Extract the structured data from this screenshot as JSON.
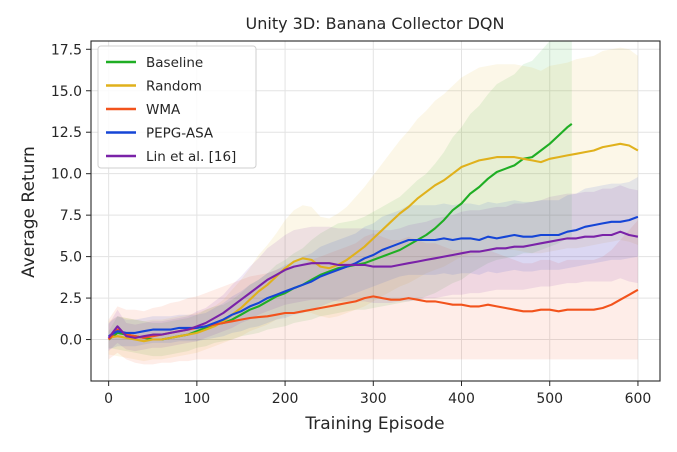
{
  "chart_data": {
    "type": "line",
    "title": "Unity 3D: Banana Collector DQN",
    "xlabel": "Training Episode",
    "ylabel": "Average Return",
    "xlim": [
      -20,
      625
    ],
    "ylim": [
      -2.5,
      18.0
    ],
    "xticks": [
      0,
      100,
      200,
      300,
      400,
      500,
      600
    ],
    "yticks": [
      0.0,
      2.5,
      5.0,
      7.5,
      10.0,
      12.5,
      15.0,
      17.5
    ],
    "xtick_labels": [
      "0",
      "100",
      "200",
      "300",
      "400",
      "500",
      "600"
    ],
    "ytick_labels": [
      "0.0",
      "2.5",
      "5.0",
      "7.5",
      "10.0",
      "12.5",
      "15.0",
      "17.5"
    ],
    "grid": true,
    "legend_position": "upper-left",
    "series": [
      {
        "name": "Baseline",
        "color": "#1fae24",
        "x": [
          0,
          10,
          20,
          30,
          40,
          50,
          60,
          70,
          80,
          90,
          100,
          110,
          120,
          130,
          140,
          150,
          160,
          170,
          180,
          190,
          200,
          210,
          220,
          230,
          240,
          250,
          260,
          270,
          280,
          290,
          300,
          310,
          320,
          330,
          340,
          350,
          360,
          370,
          380,
          390,
          400,
          410,
          420,
          430,
          440,
          450,
          460,
          470,
          480,
          490,
          500,
          510,
          520,
          525
        ],
        "y": [
          0.0,
          0.4,
          0.3,
          0.2,
          0.1,
          0.0,
          0.0,
          0.1,
          0.2,
          0.3,
          0.5,
          0.7,
          0.9,
          1.0,
          1.2,
          1.5,
          1.8,
          2.0,
          2.3,
          2.6,
          2.8,
          3.1,
          3.3,
          3.6,
          3.9,
          4.1,
          4.3,
          4.4,
          4.5,
          4.6,
          4.8,
          5.0,
          5.2,
          5.4,
          5.7,
          6.0,
          6.3,
          6.7,
          7.2,
          7.8,
          8.2,
          8.8,
          9.2,
          9.7,
          10.1,
          10.3,
          10.5,
          10.9,
          11.0,
          11.4,
          11.8,
          12.3,
          12.8,
          13.0
        ],
        "band_lo": [
          -0.5,
          -0.6,
          -0.7,
          -0.8,
          -0.9,
          -1.0,
          -1.0,
          -0.9,
          -0.8,
          -0.7,
          -0.5,
          -0.4,
          -0.2,
          -0.1,
          0.0,
          0.2,
          0.3,
          0.4,
          0.6,
          0.7,
          0.8,
          1.0,
          1.1,
          1.2,
          1.4,
          1.5,
          1.6,
          1.7,
          1.8,
          1.8,
          1.9,
          2.0,
          2.1,
          2.2,
          2.3,
          2.4,
          2.6,
          2.8,
          3.1,
          3.4,
          3.6,
          4.0,
          4.3,
          4.6,
          4.8,
          4.9,
          5.0,
          5.2,
          5.2,
          5.4,
          5.6,
          5.8,
          6.1,
          6.2
        ],
        "band_hi": [
          0.5,
          1.4,
          1.3,
          1.2,
          1.1,
          1.0,
          1.0,
          1.1,
          1.2,
          1.3,
          1.5,
          1.8,
          2.0,
          2.1,
          2.4,
          2.8,
          3.3,
          3.6,
          4.0,
          4.5,
          4.8,
          5.2,
          5.5,
          6.0,
          6.4,
          6.7,
          7.0,
          7.1,
          7.2,
          7.4,
          7.7,
          8.0,
          8.3,
          8.6,
          9.1,
          9.6,
          10.0,
          10.6,
          11.3,
          12.2,
          12.8,
          13.6,
          14.1,
          14.8,
          15.4,
          15.7,
          16.0,
          16.6,
          16.8,
          17.4,
          18.0,
          18.0,
          18.0,
          18.0
        ]
      },
      {
        "name": "Random",
        "color": "#e0b11c",
        "x": [
          0,
          10,
          20,
          30,
          40,
          50,
          60,
          70,
          80,
          90,
          100,
          110,
          120,
          130,
          140,
          150,
          160,
          170,
          180,
          190,
          200,
          210,
          220,
          230,
          240,
          250,
          260,
          270,
          280,
          290,
          300,
          310,
          320,
          330,
          340,
          350,
          360,
          370,
          380,
          390,
          400,
          410,
          420,
          430,
          440,
          450,
          460,
          470,
          480,
          490,
          500,
          510,
          520,
          530,
          540,
          550,
          560,
          570,
          580,
          590,
          600
        ],
        "y": [
          0.1,
          0.2,
          0.1,
          0.0,
          -0.1,
          0.0,
          0.0,
          0.1,
          0.2,
          0.3,
          0.4,
          0.6,
          0.8,
          1.1,
          1.5,
          1.9,
          2.4,
          2.9,
          3.3,
          3.8,
          4.3,
          4.7,
          4.9,
          4.8,
          4.4,
          4.3,
          4.5,
          4.8,
          5.2,
          5.6,
          6.1,
          6.6,
          7.1,
          7.6,
          8.0,
          8.5,
          8.9,
          9.3,
          9.6,
          10.0,
          10.4,
          10.6,
          10.8,
          10.9,
          11.0,
          11.0,
          11.0,
          10.9,
          10.8,
          10.7,
          10.9,
          11.0,
          11.1,
          11.2,
          11.3,
          11.4,
          11.6,
          11.7,
          11.8,
          11.7,
          11.4
        ],
        "band_lo": [
          -0.9,
          -1.0,
          -1.1,
          -1.2,
          -1.3,
          -1.2,
          -1.2,
          -1.1,
          -1.0,
          -0.9,
          -0.8,
          -0.6,
          -0.4,
          -0.2,
          0.0,
          0.2,
          0.5,
          0.7,
          0.9,
          1.2,
          1.4,
          1.6,
          1.7,
          1.6,
          1.4,
          1.3,
          1.4,
          1.6,
          1.8,
          2.0,
          2.3,
          2.6,
          2.9,
          3.2,
          3.4,
          3.7,
          4.0,
          4.2,
          4.4,
          4.7,
          5.0,
          5.1,
          5.2,
          5.3,
          5.4,
          5.4,
          5.4,
          5.3,
          5.2,
          5.2,
          5.3,
          5.4,
          5.5,
          5.5,
          5.6,
          5.7,
          5.8,
          5.9,
          6.0,
          5.9,
          5.7
        ],
        "band_hi": [
          1.1,
          1.4,
          1.3,
          1.2,
          1.1,
          1.2,
          1.2,
          1.3,
          1.4,
          1.5,
          1.6,
          1.8,
          2.0,
          2.4,
          3.0,
          3.6,
          4.3,
          5.1,
          5.7,
          6.4,
          7.2,
          7.8,
          8.1,
          8.0,
          7.4,
          7.3,
          7.6,
          8.0,
          8.6,
          9.2,
          9.9,
          10.6,
          11.3,
          12.0,
          12.6,
          13.3,
          13.8,
          14.4,
          14.8,
          15.3,
          15.8,
          16.1,
          16.4,
          16.5,
          16.6,
          16.6,
          16.6,
          16.5,
          16.4,
          16.2,
          16.5,
          16.6,
          16.7,
          16.9,
          17.0,
          17.1,
          17.4,
          17.5,
          17.6,
          17.5,
          17.1
        ]
      },
      {
        "name": "WMA",
        "color": "#f2531c",
        "x": [
          0,
          10,
          20,
          30,
          40,
          50,
          60,
          70,
          80,
          90,
          100,
          110,
          120,
          130,
          140,
          150,
          160,
          170,
          180,
          190,
          200,
          210,
          220,
          230,
          240,
          250,
          260,
          270,
          280,
          290,
          300,
          310,
          320,
          330,
          340,
          350,
          360,
          370,
          380,
          390,
          400,
          410,
          420,
          430,
          440,
          450,
          460,
          470,
          480,
          490,
          500,
          510,
          520,
          530,
          540,
          550,
          560,
          570,
          580,
          590,
          600
        ],
        "y": [
          0.0,
          0.6,
          0.3,
          0.2,
          0.1,
          0.2,
          0.3,
          0.4,
          0.5,
          0.6,
          0.7,
          0.8,
          0.9,
          1.0,
          1.1,
          1.2,
          1.3,
          1.35,
          1.4,
          1.5,
          1.6,
          1.6,
          1.7,
          1.8,
          1.9,
          2.0,
          2.1,
          2.2,
          2.3,
          2.5,
          2.6,
          2.5,
          2.4,
          2.4,
          2.5,
          2.4,
          2.3,
          2.3,
          2.2,
          2.1,
          2.1,
          2.0,
          2.0,
          2.1,
          2.0,
          1.9,
          1.8,
          1.7,
          1.7,
          1.8,
          1.8,
          1.7,
          1.8,
          1.8,
          1.8,
          1.8,
          1.9,
          2.1,
          2.4,
          2.7,
          3.0
        ],
        "band_lo": [
          -1.2,
          -0.8,
          -1.2,
          -1.4,
          -1.5,
          -1.5,
          -1.4,
          -1.4,
          -1.3,
          -1.3,
          -1.2,
          -1.2,
          -1.2,
          -1.2,
          -1.2,
          -1.2,
          -1.2,
          -1.2,
          -1.2,
          -1.2,
          -1.2,
          -1.2,
          -1.2,
          -1.2,
          -1.2,
          -1.2,
          -1.2,
          -1.2,
          -1.2,
          -1.2,
          -1.2,
          -1.2,
          -1.2,
          -1.2,
          -1.2,
          -1.2,
          -1.2,
          -1.2,
          -1.2,
          -1.2,
          -1.2,
          -1.2,
          -1.2,
          -1.2,
          -1.2,
          -1.2,
          -1.2,
          -1.2,
          -1.2,
          -1.2,
          -1.2,
          -1.2,
          -1.2,
          -1.2,
          -1.2,
          -1.2,
          -1.2,
          -1.2,
          -1.2,
          -1.2,
          -1.2
        ],
        "band_hi": [
          1.2,
          2.0,
          1.8,
          1.8,
          1.7,
          1.9,
          2.0,
          2.2,
          2.3,
          2.5,
          2.6,
          2.8,
          3.0,
          3.2,
          3.4,
          3.6,
          3.8,
          3.9,
          4.0,
          4.2,
          4.4,
          4.4,
          4.6,
          4.8,
          5.0,
          5.2,
          5.4,
          5.6,
          5.8,
          6.2,
          6.4,
          6.2,
          6.0,
          6.0,
          6.2,
          6.0,
          5.8,
          5.8,
          5.6,
          5.4,
          5.4,
          5.2,
          5.2,
          5.4,
          5.2,
          5.0,
          4.8,
          4.6,
          4.6,
          4.8,
          4.8,
          4.6,
          4.8,
          4.8,
          4.8,
          4.8,
          5.0,
          5.4,
          6.0,
          6.6,
          7.2
        ]
      },
      {
        "name": "PEPG-ASA",
        "color": "#1545d6",
        "x": [
          0,
          10,
          20,
          30,
          40,
          50,
          60,
          70,
          80,
          90,
          100,
          110,
          120,
          130,
          140,
          150,
          160,
          170,
          180,
          190,
          200,
          210,
          220,
          230,
          240,
          250,
          260,
          270,
          280,
          290,
          300,
          310,
          320,
          330,
          340,
          350,
          360,
          370,
          380,
          390,
          400,
          410,
          420,
          430,
          440,
          450,
          460,
          470,
          480,
          490,
          500,
          510,
          520,
          530,
          540,
          550,
          560,
          570,
          580,
          590,
          600
        ],
        "y": [
          0.2,
          0.5,
          0.4,
          0.4,
          0.5,
          0.6,
          0.6,
          0.6,
          0.7,
          0.7,
          0.7,
          0.8,
          1.0,
          1.2,
          1.5,
          1.7,
          2.0,
          2.2,
          2.5,
          2.7,
          2.9,
          3.1,
          3.3,
          3.5,
          3.8,
          4.0,
          4.2,
          4.4,
          4.6,
          4.9,
          5.1,
          5.4,
          5.6,
          5.8,
          6.0,
          6.0,
          6.0,
          6.0,
          6.1,
          6.0,
          6.1,
          6.1,
          6.0,
          6.2,
          6.1,
          6.2,
          6.3,
          6.2,
          6.2,
          6.3,
          6.3,
          6.3,
          6.5,
          6.6,
          6.8,
          6.9,
          7.0,
          7.1,
          7.1,
          7.2,
          7.4
        ],
        "band_lo": [
          -0.6,
          -0.4,
          -0.4,
          -0.4,
          -0.3,
          -0.2,
          -0.2,
          -0.2,
          -0.1,
          -0.1,
          -0.1,
          0.0,
          0.1,
          0.2,
          0.4,
          0.5,
          0.7,
          0.8,
          1.0,
          1.2,
          1.3,
          1.5,
          1.6,
          1.8,
          2.0,
          2.2,
          2.4,
          2.6,
          2.8,
          3.0,
          3.2,
          3.4,
          3.6,
          3.8,
          3.9,
          3.9,
          3.9,
          3.9,
          4.0,
          3.9,
          4.0,
          4.0,
          3.9,
          4.1,
          4.0,
          4.1,
          4.2,
          4.1,
          4.1,
          4.2,
          4.2,
          4.2,
          4.3,
          4.4,
          4.5,
          4.6,
          4.7,
          4.8,
          4.8,
          4.9,
          5.0
        ],
        "band_hi": [
          1.0,
          1.4,
          1.2,
          1.2,
          1.3,
          1.4,
          1.4,
          1.4,
          1.5,
          1.5,
          1.5,
          1.6,
          1.9,
          2.2,
          2.6,
          2.9,
          3.3,
          3.6,
          4.0,
          4.2,
          4.5,
          4.7,
          5.0,
          5.2,
          5.6,
          5.8,
          6.0,
          6.2,
          6.4,
          6.8,
          7.0,
          7.4,
          7.6,
          7.8,
          8.1,
          8.1,
          8.1,
          8.1,
          8.2,
          8.1,
          8.2,
          8.2,
          8.1,
          8.3,
          8.2,
          8.3,
          8.4,
          8.3,
          8.3,
          8.4,
          8.4,
          8.4,
          8.7,
          8.8,
          9.1,
          9.2,
          9.3,
          9.4,
          9.4,
          9.5,
          9.8
        ]
      },
      {
        "name": "Lin et al. [16]",
        "color": "#7a22a8",
        "x": [
          0,
          10,
          20,
          30,
          40,
          50,
          60,
          70,
          80,
          90,
          100,
          110,
          120,
          130,
          140,
          150,
          160,
          170,
          180,
          190,
          200,
          210,
          220,
          230,
          240,
          250,
          260,
          270,
          280,
          290,
          300,
          310,
          320,
          330,
          340,
          350,
          360,
          370,
          380,
          390,
          400,
          410,
          420,
          430,
          440,
          450,
          460,
          470,
          480,
          490,
          500,
          510,
          520,
          530,
          540,
          550,
          560,
          570,
          580,
          590,
          600
        ],
        "y": [
          0.1,
          0.8,
          0.2,
          0.1,
          0.2,
          0.3,
          0.3,
          0.4,
          0.5,
          0.6,
          0.8,
          1.0,
          1.3,
          1.6,
          2.0,
          2.4,
          2.8,
          3.2,
          3.6,
          3.9,
          4.2,
          4.4,
          4.5,
          4.6,
          4.6,
          4.6,
          4.5,
          4.5,
          4.5,
          4.5,
          4.4,
          4.4,
          4.4,
          4.5,
          4.6,
          4.7,
          4.8,
          4.9,
          5.0,
          5.1,
          5.2,
          5.3,
          5.3,
          5.4,
          5.5,
          5.5,
          5.6,
          5.6,
          5.7,
          5.8,
          5.9,
          6.0,
          6.1,
          6.1,
          6.2,
          6.2,
          6.3,
          6.3,
          6.5,
          6.3,
          6.2
        ],
        "band_lo": [
          -0.7,
          -0.2,
          -0.6,
          -0.7,
          -0.6,
          -0.5,
          -0.5,
          -0.4,
          -0.3,
          -0.2,
          -0.1,
          0.1,
          0.3,
          0.5,
          0.7,
          1.0,
          1.2,
          1.5,
          1.7,
          1.9,
          2.1,
          2.2,
          2.3,
          2.4,
          2.4,
          2.4,
          2.3,
          2.3,
          2.3,
          2.3,
          2.2,
          2.2,
          2.2,
          2.3,
          2.3,
          2.4,
          2.5,
          2.5,
          2.6,
          2.7,
          2.7,
          2.8,
          2.8,
          2.9,
          3.0,
          3.0,
          3.0,
          3.0,
          3.1,
          3.2,
          3.2,
          3.3,
          3.4,
          3.4,
          3.5,
          3.5,
          3.5,
          3.5,
          3.7,
          3.5,
          3.4
        ],
        "band_hi": [
          0.9,
          1.8,
          1.0,
          0.9,
          1.0,
          1.1,
          1.1,
          1.2,
          1.3,
          1.4,
          1.7,
          1.9,
          2.3,
          2.7,
          3.3,
          3.8,
          4.4,
          4.9,
          5.5,
          5.9,
          6.3,
          6.6,
          6.7,
          6.8,
          6.8,
          6.8,
          6.7,
          6.7,
          6.7,
          6.7,
          6.6,
          6.6,
          6.6,
          6.7,
          6.9,
          7.0,
          7.1,
          7.3,
          7.4,
          7.5,
          7.7,
          7.8,
          7.8,
          7.9,
          8.0,
          8.0,
          8.2,
          8.2,
          8.3,
          8.4,
          8.6,
          8.7,
          8.8,
          8.8,
          8.9,
          8.9,
          9.1,
          9.1,
          9.3,
          9.1,
          9.0
        ]
      }
    ]
  }
}
